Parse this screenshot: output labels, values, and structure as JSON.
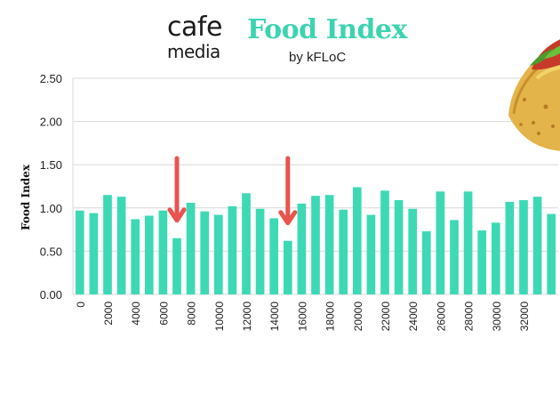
{
  "brand": {
    "line1": "cafe",
    "line2": "media"
  },
  "chart_data": {
    "type": "bar",
    "title": "Food Index",
    "subtitle": "by kFLoC",
    "xlabel": "",
    "ylabel": "Food Index",
    "ylim": [
      0,
      2.5
    ],
    "yticks": [
      "0.00",
      "0.50",
      "1.00",
      "1.50",
      "2.00",
      "2.50"
    ],
    "x_tick_labels": [
      "0",
      "2000",
      "4000",
      "6000",
      "8000",
      "10000",
      "12000",
      "14000",
      "16000",
      "18000",
      "20000",
      "22000",
      "24000",
      "26000",
      "28000",
      "30000",
      "32000"
    ],
    "x_start": 0,
    "x_step": 1000,
    "grid": true,
    "colors": {
      "bar": "#3dd9b5",
      "grid": "#d9d9d9",
      "arrow": "#e8544e",
      "title": "#3cd4b0"
    },
    "values": [
      0.97,
      0.94,
      1.15,
      1.13,
      0.87,
      0.91,
      0.97,
      0.65,
      1.06,
      0.96,
      0.92,
      1.02,
      1.17,
      0.99,
      0.88,
      0.62,
      1.05,
      1.14,
      1.15,
      0.98,
      1.24,
      0.92,
      1.2,
      1.09,
      0.99,
      0.73,
      1.19,
      0.86,
      1.19,
      0.74,
      0.83,
      1.07,
      1.09,
      1.13,
      0.93
    ],
    "annotations": [
      {
        "type": "arrow",
        "x": 7000,
        "color": "#e8544e"
      },
      {
        "type": "arrow",
        "x": 15000,
        "color": "#e8544e"
      }
    ]
  },
  "decoration": {
    "image": "taco-icon"
  }
}
